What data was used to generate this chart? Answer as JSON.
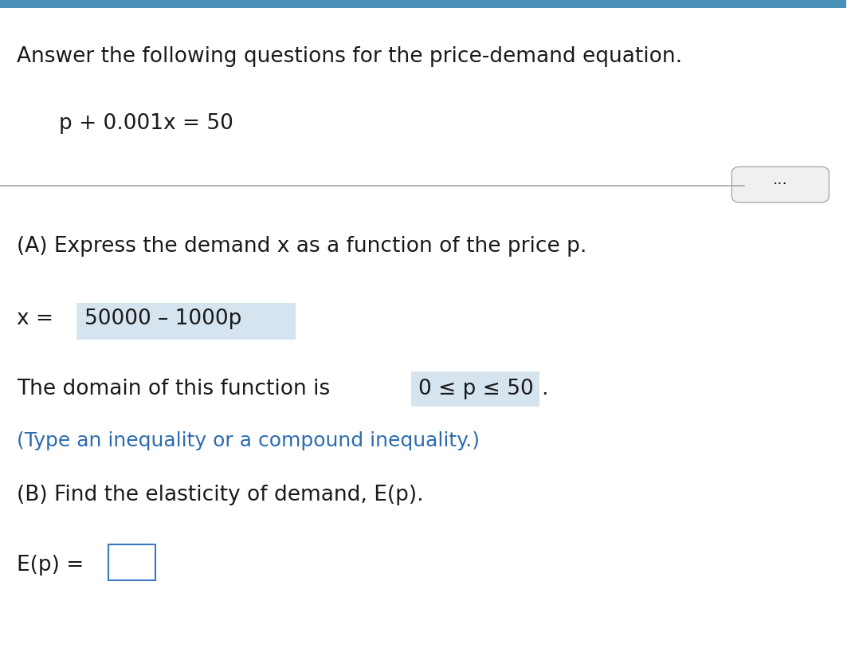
{
  "bg_color": "#ffffff",
  "top_bar_color": "#4a90b8",
  "top_bar_height": 0.012,
  "title_text": "Answer the following questions for the price-demand equation.",
  "equation_text": "p + 0.001x = 50",
  "part_a_label": "(A) Express the demand x as a function of the price p.",
  "x_equals": "x = ",
  "answer_a": "50000 – 1000p",
  "domain_prefix": "The domain of this function is ",
  "domain_value": "0 ≤ p ≤ 50",
  "domain_suffix": ".",
  "type_hint": "(Type an inequality or a compound inequality.)",
  "part_b_label": "(B) Find the elasticity of demand, E(p).",
  "ep_label": "E(p) = ",
  "highlight_color": "#d6e4f0",
  "blue_text_color": "#2b6cb0",
  "dark_text_color": "#1a1a1a",
  "divider_color": "#aaaaaa",
  "btn_face_color": "#f0f0f0",
  "btn_edge_color": "#aaaaaa",
  "box_edge_color": "#3a7abf",
  "font_size_title": 19,
  "font_size_body": 19,
  "font_size_hint": 18,
  "font_size_dots": 14
}
